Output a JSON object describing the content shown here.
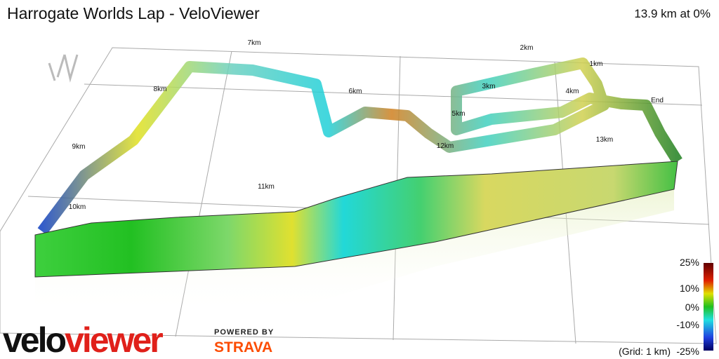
{
  "header": {
    "title": "Harrogate Worlds Lap - VeloViewer",
    "summary": "13.9 km at 0%"
  },
  "markers": [
    {
      "label": "7km"
    },
    {
      "label": "2km"
    },
    {
      "label": "1km"
    },
    {
      "label": "3km"
    },
    {
      "label": "4km"
    },
    {
      "label": "6km"
    },
    {
      "label": "8km"
    },
    {
      "label": "5km"
    },
    {
      "label": "End"
    },
    {
      "label": "12km"
    },
    {
      "label": "13km"
    },
    {
      "label": "9km"
    },
    {
      "label": "11km"
    },
    {
      "label": "10km"
    }
  ],
  "legend": {
    "labels": [
      "25%",
      "10%",
      "0%",
      "-10%",
      "-25%"
    ],
    "grid_note": "(Grid: 1 km)"
  },
  "branding": {
    "logo_velo": "velo",
    "logo_viewer": "viewer",
    "powered_by": "POWERED BY",
    "strava": "STRAVA"
  }
}
